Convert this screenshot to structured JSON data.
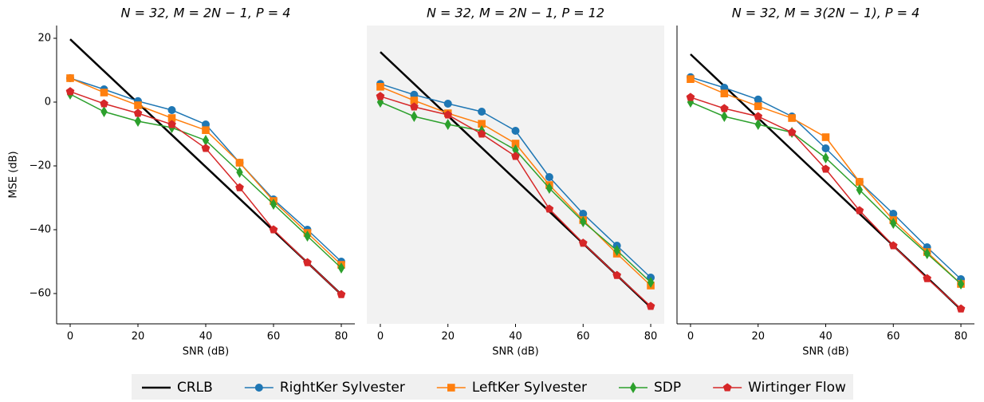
{
  "chart_data": [
    {
      "type": "line",
      "title": "N = 32, M = 2N − 1, P = 4",
      "xlabel": "SNR (dB)",
      "ylabel": "MSE (dB)",
      "x": [
        0,
        10,
        20,
        30,
        40,
        50,
        60,
        70,
        80
      ],
      "xlim": [
        -4,
        84
      ],
      "ylim": [
        -69.5,
        24
      ],
      "xticks": [
        0,
        20,
        40,
        60,
        80
      ],
      "yticks": [
        {
          "value": -60,
          "label": "−60"
        },
        {
          "value": -40,
          "label": "−40"
        },
        {
          "value": -20,
          "label": "−20"
        },
        0,
        20
      ],
      "facecolor": "#ffffff",
      "spines": true,
      "series": [
        {
          "name": "CRLB",
          "color": "#000000",
          "values": [
            19.7,
            9.7,
            -0.3,
            -10.3,
            -20.3,
            -30.3,
            -40.3,
            -50.3,
            -60.3
          ]
        },
        {
          "name": "RightKer Sylvester",
          "color": "#1f77b4",
          "marker": "circle",
          "values": [
            7.5,
            4,
            0.3,
            -2.5,
            -7,
            -19,
            -30.5,
            -40,
            -50
          ]
        },
        {
          "name": "LeftKer Sylvester",
          "color": "#ff7f0e",
          "marker": "square",
          "values": [
            7.5,
            3,
            -1,
            -5,
            -8.8,
            -19,
            -31,
            -41,
            -51
          ]
        },
        {
          "name": "SDP",
          "color": "#2ca02c",
          "marker": "diamond",
          "values": [
            2.5,
            -3,
            -6,
            -8,
            -12,
            -22,
            -32,
            -42,
            -52
          ]
        },
        {
          "name": "Wirtinger Flow",
          "color": "#d62728",
          "marker": "pentagon",
          "values": [
            3.3,
            -0.5,
            -3.5,
            -7,
            -14.5,
            -26.8,
            -40,
            -50.3,
            -60.3
          ]
        }
      ]
    },
    {
      "type": "line",
      "title": "N = 32, M = 2N − 1, P = 12",
      "xlabel": "SNR (dB)",
      "x": [
        0,
        10,
        20,
        30,
        40,
        50,
        60,
        70,
        80
      ],
      "xlim": [
        -4,
        84
      ],
      "ylim": [
        -69.5,
        24
      ],
      "xticks": [
        0,
        20,
        40,
        60,
        80
      ],
      "facecolor": "#f2f2f2",
      "spines": false,
      "series": [
        {
          "color": "#000000",
          "values": [
            15.7,
            5.7,
            -4.3,
            -14.3,
            -24.3,
            -34.3,
            -44.3,
            -54.3,
            -64.3
          ]
        },
        {
          "color": "#1f77b4",
          "marker": "circle",
          "values": [
            5.7,
            2.3,
            -0.5,
            -3,
            -9,
            -23.5,
            -35,
            -45,
            -55
          ]
        },
        {
          "color": "#ff7f0e",
          "marker": "square",
          "values": [
            4.8,
            0.5,
            -3.5,
            -6.8,
            -13,
            -26,
            -37,
            -47.5,
            -57.5
          ]
        },
        {
          "color": "#2ca02c",
          "marker": "diamond",
          "values": [
            0,
            -4.5,
            -7,
            -9,
            -15,
            -27,
            -37.5,
            -46.5,
            -56.5
          ]
        },
        {
          "color": "#d62728",
          "marker": "pentagon",
          "values": [
            1.8,
            -1.5,
            -4,
            -10,
            -17,
            -33.5,
            -44.2,
            -54.3,
            -64
          ]
        }
      ]
    },
    {
      "type": "line",
      "title": "N = 32, M = 3(2N − 1), P = 4",
      "xlabel": "SNR (dB)",
      "x": [
        0,
        10,
        20,
        30,
        40,
        50,
        60,
        70,
        80
      ],
      "xlim": [
        -4,
        84
      ],
      "ylim": [
        -69.5,
        24
      ],
      "xticks": [
        0,
        20,
        40,
        60,
        80
      ],
      "facecolor": "#ffffff",
      "spines": true,
      "series": [
        {
          "color": "#000000",
          "values": [
            15,
            5,
            -5,
            -15,
            -25,
            -35,
            -45,
            -55,
            -65
          ]
        },
        {
          "color": "#1f77b4",
          "marker": "circle",
          "values": [
            7.8,
            4.5,
            0.8,
            -4.5,
            -14.5,
            -25,
            -35,
            -45.5,
            -55.5
          ]
        },
        {
          "color": "#ff7f0e",
          "marker": "square",
          "values": [
            7.2,
            2.7,
            -1.3,
            -5,
            -11,
            -25,
            -37,
            -47,
            -57
          ]
        },
        {
          "color": "#2ca02c",
          "marker": "diamond",
          "values": [
            0,
            -4.5,
            -7,
            -9.5,
            -17.5,
            -27.5,
            -38,
            -47.5,
            -57
          ]
        },
        {
          "color": "#d62728",
          "marker": "pentagon",
          "values": [
            1.5,
            -2,
            -4.5,
            -9.5,
            -21,
            -34,
            -45,
            -55.3,
            -64.8
          ]
        }
      ]
    }
  ]
}
